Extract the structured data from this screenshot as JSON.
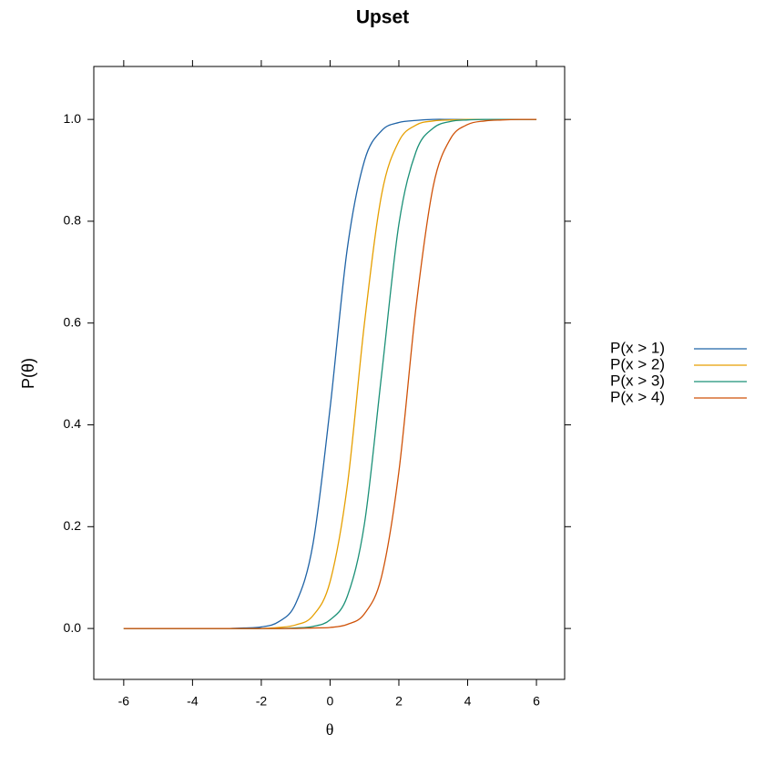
{
  "chart_data": {
    "type": "line",
    "title": "Upset",
    "xlabel": "θ",
    "ylabel": "P(θ)",
    "x": [
      -6,
      -5.5,
      -5,
      -4.5,
      -4,
      -3.5,
      -3,
      -2.5,
      -2,
      -1.5,
      -1,
      -0.5,
      0,
      0.5,
      1,
      1.5,
      2,
      2.5,
      3,
      3.5,
      4,
      4.5,
      5,
      5.5,
      6
    ],
    "series": [
      {
        "name": "P(x > 1)",
        "color": "#1f63a6",
        "values": [
          0,
          0,
          0,
          0,
          0,
          0,
          0,
          0.001,
          0.003,
          0.013,
          0.049,
          0.165,
          0.433,
          0.746,
          0.919,
          0.978,
          0.994,
          0.998,
          1,
          1,
          1,
          1,
          1,
          1,
          1
        ]
      },
      {
        "name": "P(x > 2)",
        "color": "#e69f00",
        "values": [
          0,
          0,
          0,
          0,
          0,
          0,
          0,
          0,
          0,
          0.002,
          0.007,
          0.025,
          0.092,
          0.28,
          0.6,
          0.853,
          0.957,
          0.989,
          0.997,
          0.999,
          1,
          1,
          1,
          1,
          1
        ]
      },
      {
        "name": "P(x > 3)",
        "color": "#1b9077",
        "values": [
          0,
          0,
          0,
          0,
          0,
          0,
          0,
          0,
          0,
          0,
          0.001,
          0.004,
          0.017,
          0.063,
          0.206,
          0.5,
          0.794,
          0.937,
          0.983,
          0.996,
          0.999,
          1,
          1,
          1,
          1
        ]
      },
      {
        "name": "P(x > 4)",
        "color": "#cf5208",
        "values": [
          0,
          0,
          0,
          0,
          0,
          0,
          0,
          0,
          0,
          0,
          0,
          0.001,
          0.002,
          0.008,
          0.029,
          0.103,
          0.308,
          0.632,
          0.869,
          0.962,
          0.99,
          0.997,
          0.999,
          1,
          1
        ]
      }
    ],
    "xlim": [
      -6.87,
      6.82
    ],
    "xticks": [
      -6,
      -4,
      -2,
      0,
      2,
      4,
      6
    ],
    "ylim": [
      -0.1,
      1.104
    ],
    "yticks": [
      {
        "value": 0,
        "label": "0.0"
      },
      {
        "value": 0.2,
        "label": "0.2"
      },
      {
        "value": 0.4,
        "label": "0.4"
      },
      {
        "value": 0.6,
        "label": "0.6"
      },
      {
        "value": 0.8,
        "label": "0.8"
      },
      {
        "value": 1,
        "label": "1.0"
      }
    ],
    "grid": false
  }
}
